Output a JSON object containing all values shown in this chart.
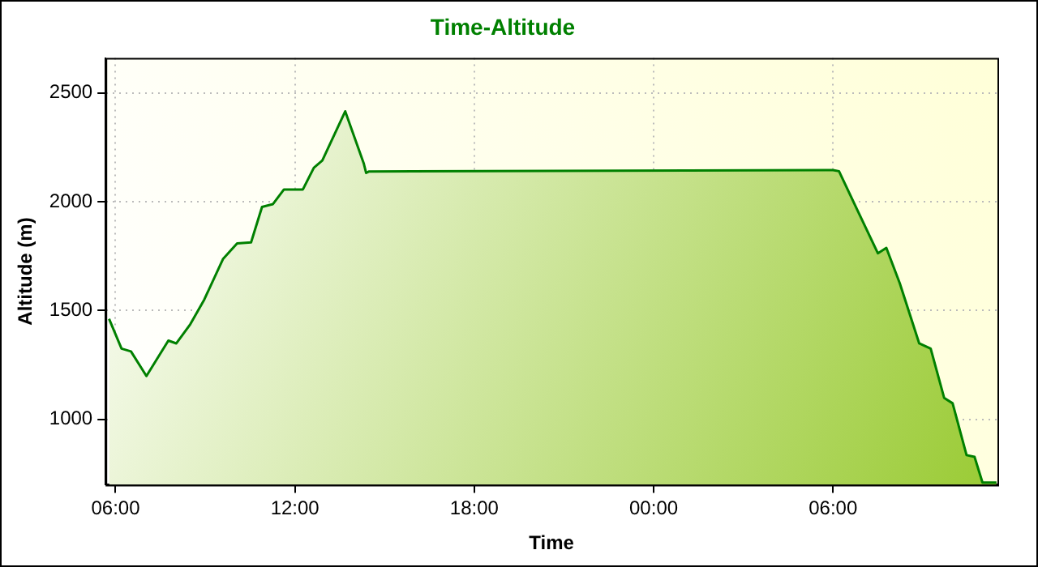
{
  "chart_data": {
    "type": "area",
    "title": "Time-Altitude",
    "xlabel": "Time",
    "ylabel": "Altitude (m)",
    "x": [
      "--01-01T05:47",
      "--01-01T06:12",
      "--01-01T06:31",
      "--01-01T07:02",
      "--01-01T07:46",
      "--01-01T08:02",
      "--01-01T08:30",
      "--01-01T08:58",
      "--01-01T09:36",
      "--01-01T10:04",
      "--01-01T10:32",
      "--01-01T10:54",
      "--01-01T11:16",
      "--01-01T11:38",
      "--01-01T12:16",
      "--01-01T12:38",
      "--01-01T12:55",
      "--01-01T13:41",
      "--01-01T14:18",
      "--01-01T14:23",
      "--01-01T14:29",
      "--01-02T06:00",
      "--01-02T06:12",
      "--01-02T06:51",
      "--01-02T07:30",
      "--01-02T07:47",
      "--01-02T08:14",
      "--01-02T08:53",
      "--01-02T09:16",
      "--01-02T09:43",
      "--01-02T10:00",
      "--01-02T10:28",
      "--01-02T10:44",
      "--01-02T11:00",
      "--01-02T11:28"
    ],
    "series": [
      {
        "color": "#008000",
        "values": [
          1462,
          1325,
          1312,
          1199,
          1362,
          1349,
          1437,
          1550,
          1738,
          1808,
          1813,
          1976,
          1989,
          2056,
          2056,
          2156,
          2189,
          2415,
          2177,
          2132,
          2139,
          2145,
          2140,
          1951,
          1763,
          1788,
          1625,
          1349,
          1325,
          1099,
          1074,
          836,
          828,
          710,
          710
        ]
      }
    ],
    "xlim": [
      "--01-01T05:40",
      "--01-02T11:30"
    ],
    "ylim": [
      700,
      2660
    ],
    "xticks": [
      {
        "value": "--01-01T06:00",
        "label": "06:00"
      },
      {
        "value": "--01-01T12:00",
        "label": "12:00"
      },
      {
        "value": "--01-01T18:00",
        "label": "18:00"
      },
      {
        "value": "--01-02T00:00",
        "label": "00:00"
      },
      {
        "value": "--01-02T06:00",
        "label": "06:00"
      }
    ],
    "yticks": [
      1000,
      1500,
      2000,
      2500
    ],
    "grid": true,
    "legend": false,
    "marker": "none",
    "line_style": "solid"
  }
}
